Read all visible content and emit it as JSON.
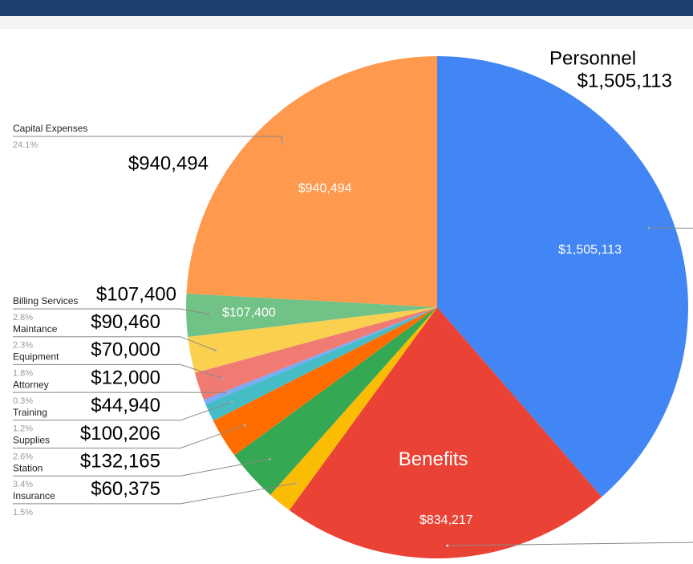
{
  "chart_data": {
    "type": "pie",
    "categories": [
      "Personnel",
      "Benefits",
      "Insurance",
      "Station",
      "Supplies",
      "Training",
      "Attorney",
      "Equipment",
      "Maintance",
      "Billing Services",
      "Capital Expenses"
    ],
    "values": [
      1505113,
      834217,
      60375,
      132165,
      100206,
      44940,
      12000,
      70000,
      90460,
      107400,
      940494
    ],
    "value_labels": [
      "$1,505,113",
      "$834,217",
      "$60,375",
      "$132,165",
      "$100,206",
      "$44,940",
      "$12,000",
      "$70,000",
      "$90,460",
      "$107,400",
      "$940,494"
    ],
    "percent_labels": [
      null,
      null,
      "1.5%",
      "3.4%",
      "2.6%",
      "1.2%",
      "0.3%",
      "1.8%",
      "2.3%",
      "2.8%",
      "24.1%"
    ],
    "colors": [
      "#4285f4",
      "#ea4335",
      "#fbbc04",
      "#34a853",
      "#ff6d01",
      "#46bdc6",
      "#7baaf7",
      "#f07b72",
      "#fcd04f",
      "#71c287",
      "#ff994d"
    ],
    "inside_labels": [
      true,
      true,
      false,
      false,
      false,
      false,
      false,
      false,
      false,
      true,
      true
    ],
    "start_angle": 0,
    "direction": "clockwise"
  }
}
